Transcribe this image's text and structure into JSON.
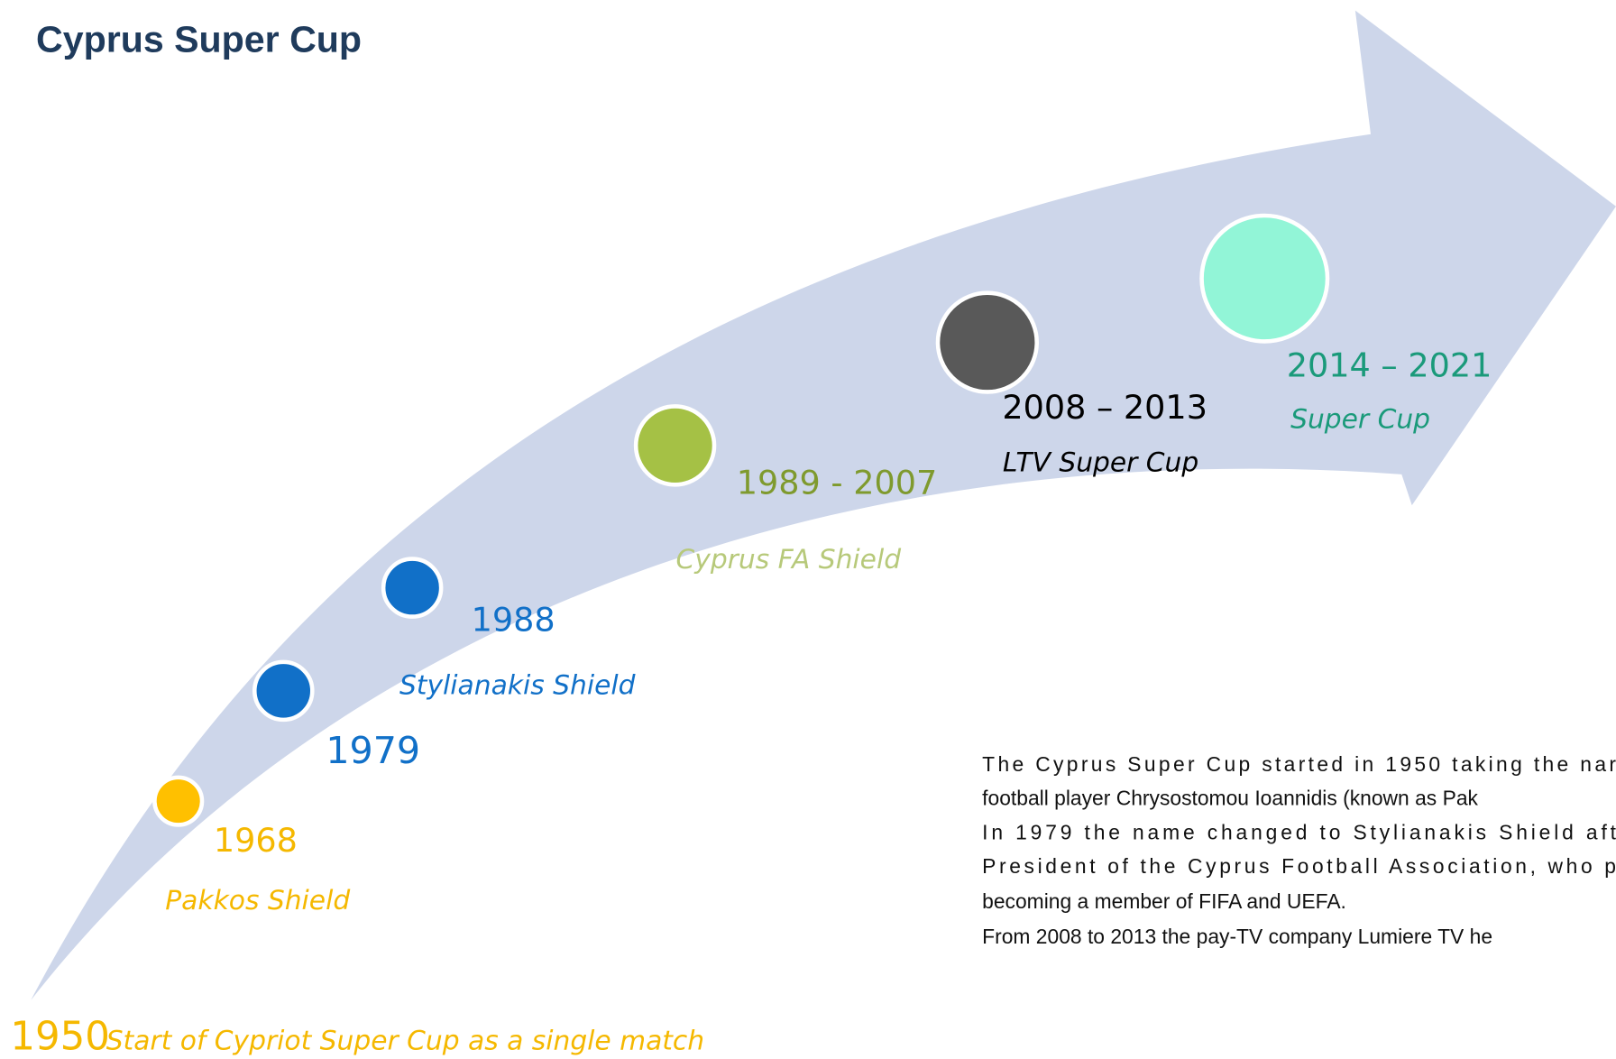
{
  "title": "Cyprus Super Cup",
  "milestones": [
    {
      "year": "1950",
      "label": "Start of Cypriot Super Cup as a single match"
    },
    {
      "year": "1968",
      "label": "Pakkos Shield"
    },
    {
      "year": "1979"
    },
    {
      "year": "1988",
      "label": "Stylianakis Shield"
    },
    {
      "year": "1989 - 2007",
      "label": "Cyprus FA Shield"
    },
    {
      "year": "2008 – 2013",
      "label": "LTV Super Cup"
    },
    {
      "year": "2014 – 2021",
      "label": "Super Cup"
    }
  ],
  "description": [
    "The Cyprus Super Cup started in 1950 taking the nar",
    "football player Chrysostomou Ioannidis (known as Pak",
    "In 1979 the name changed to Stylianakis Shield aft",
    "President of the Cyprus Football Association, who p",
    "becoming a member of FIFA and UEFA.",
    "From 2008 to 2013 the pay-TV company Lumiere TV he"
  ]
}
